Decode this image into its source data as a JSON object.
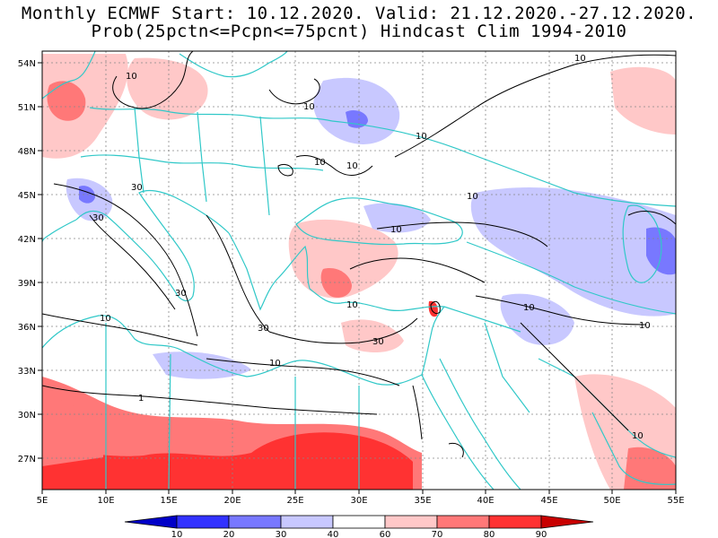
{
  "title": {
    "line1": "Monthly ECMWF Start: 10.12.2020. Valid: 21.12.2020.-27.12.2020.",
    "line2": "Prob(25pctn<=Pcpn<=75pcnt) Hindcast Clim 1994-2010"
  },
  "map": {
    "lon_range": [
      5,
      55
    ],
    "lat_range": [
      25,
      55
    ],
    "lon_ticks": [
      "5E",
      "10E",
      "15E",
      "20E",
      "25E",
      "30E",
      "35E",
      "40E",
      "45E",
      "50E",
      "55E"
    ],
    "lat_ticks": [
      "54N",
      "51N",
      "48N",
      "45N",
      "42N",
      "39N",
      "36N",
      "33N",
      "30N",
      "27N"
    ],
    "contour_labels": [
      "10",
      "10",
      "10",
      "10",
      "10",
      "10",
      "10",
      "10",
      "10",
      "10",
      "10",
      "10",
      "30",
      "30",
      "30",
      "30",
      "30",
      "1",
      "10",
      "10"
    ]
  },
  "colorbar": {
    "labels": [
      "10",
      "20",
      "30",
      "40",
      "60",
      "70",
      "80",
      "90"
    ],
    "colors": [
      "#0000c8",
      "#3232ff",
      "#7878ff",
      "#c8c8ff",
      "#ffffff",
      "#ffc8c8",
      "#ff7878",
      "#ff3232",
      "#c80000"
    ]
  },
  "colors": {
    "coastline": "#30c8c8",
    "contour": "#000000",
    "grid": "#888888"
  }
}
